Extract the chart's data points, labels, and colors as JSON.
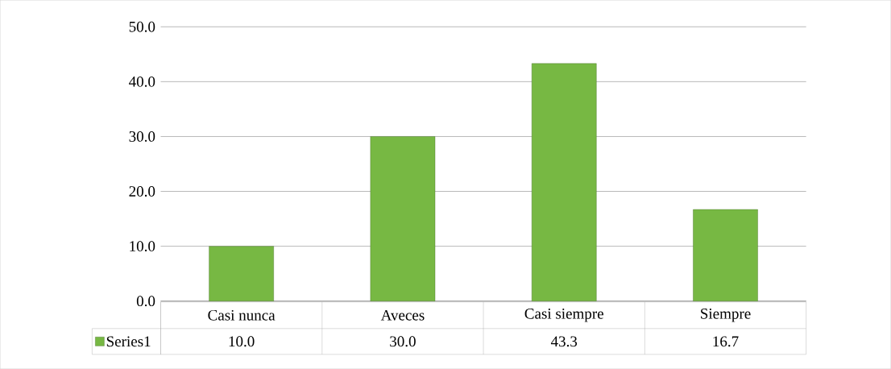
{
  "chart_data": {
    "type": "bar",
    "categories": [
      "Casi nunca",
      "Aveces",
      "Casi siempre",
      "Siempre"
    ],
    "series": [
      {
        "name": "Series1",
        "color": "#77b843",
        "values": [
          10.0,
          30.0,
          43.3,
          16.7
        ],
        "value_labels": [
          "10.0",
          "30.0",
          "43.3",
          "16.7"
        ]
      }
    ],
    "ylim": [
      0,
      50
    ],
    "yticks": [
      {
        "value": 0,
        "label": "0.0"
      },
      {
        "value": 10,
        "label": "10.0"
      },
      {
        "value": 20,
        "label": "20.0"
      },
      {
        "value": 30,
        "label": "30.0"
      },
      {
        "value": 40,
        "label": "40.0"
      },
      {
        "value": 50,
        "label": "50.0"
      }
    ],
    "grid": "y",
    "legend": "bottom"
  }
}
